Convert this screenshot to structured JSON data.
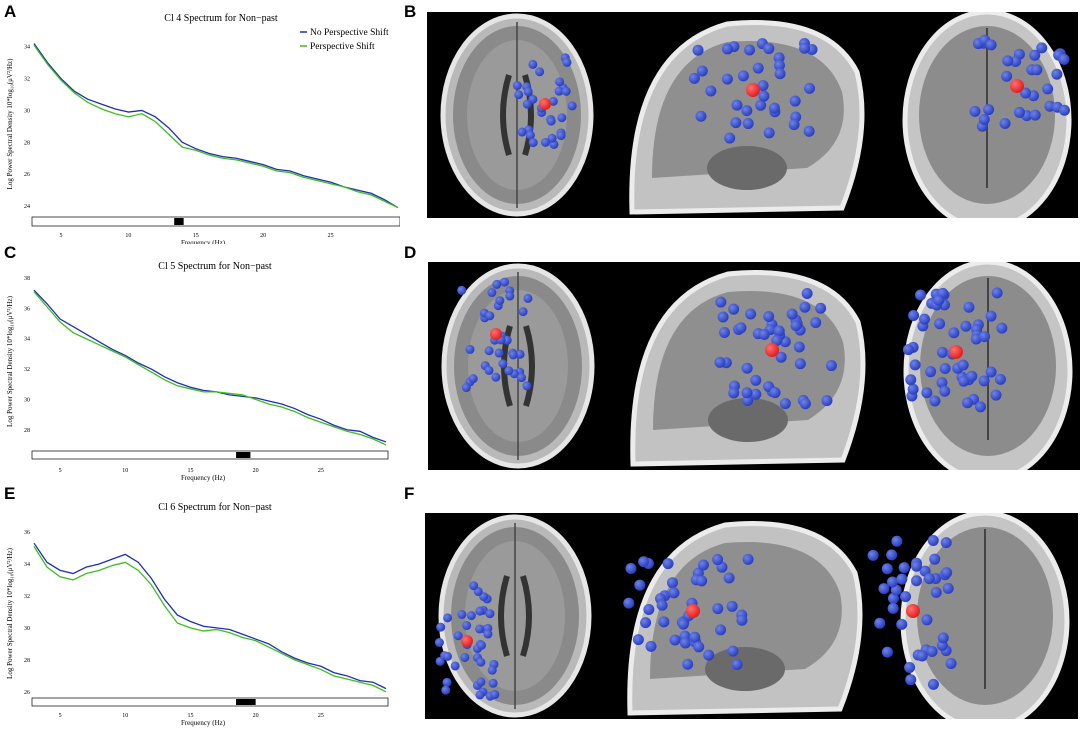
{
  "panels": {
    "a": "A",
    "b": "B",
    "c": "C",
    "d": "D",
    "e": "E",
    "f": "F"
  },
  "colors": {
    "no_shift": "#1f2fb4",
    "shift": "#3cbf1e",
    "dipole_blue": "#2a3fbf",
    "dipole_red": "#e0201e"
  },
  "chart_data": [
    {
      "type": "line",
      "title": "Cl 4 Spectrum for Non−past",
      "xlabel": "Frequency (Hz)",
      "ylabel": "Log Power Spectral Density 10*log₁₀(μV²/Hz)",
      "xlim": [
        3,
        30
      ],
      "ylim": [
        23.5,
        34.8
      ],
      "xticks": [
        "5",
        "10",
        "15",
        "20",
        "25"
      ],
      "yticks": [
        "24",
        "26",
        "28",
        "30",
        "32",
        "34"
      ],
      "legend": [
        "No Perspective Shift",
        "Perspective Shift"
      ],
      "legend_position": "top-right",
      "significance": [
        [
          13.4,
          14.1
        ]
      ],
      "series": [
        {
          "name": "No Perspective Shift",
          "x": [
            3,
            4,
            5,
            6,
            7,
            8,
            9,
            10,
            11,
            12,
            13,
            14,
            15,
            16,
            17,
            18,
            19,
            20,
            21,
            22,
            23,
            24,
            25,
            26,
            27,
            28,
            29,
            30
          ],
          "values": [
            34.2,
            33.0,
            32.0,
            31.2,
            30.7,
            30.4,
            30.1,
            29.9,
            30.0,
            29.6,
            28.9,
            28.0,
            27.6,
            27.3,
            27.1,
            27.0,
            26.8,
            26.6,
            26.3,
            26.2,
            25.9,
            25.7,
            25.5,
            25.2,
            25.0,
            24.8,
            24.4,
            23.9
          ]
        },
        {
          "name": "Perspective Shift",
          "x": [
            3,
            4,
            5,
            6,
            7,
            8,
            9,
            10,
            11,
            12,
            13,
            14,
            15,
            16,
            17,
            18,
            19,
            20,
            21,
            22,
            23,
            24,
            25,
            26,
            27,
            28,
            29,
            30
          ],
          "values": [
            34.1,
            32.9,
            31.9,
            31.1,
            30.5,
            30.1,
            29.8,
            29.6,
            29.8,
            29.3,
            28.5,
            27.7,
            27.5,
            27.2,
            27.0,
            26.9,
            26.7,
            26.5,
            26.2,
            26.1,
            25.8,
            25.6,
            25.4,
            25.2,
            24.9,
            24.7,
            24.3,
            23.9
          ]
        }
      ]
    },
    {
      "type": "line",
      "title": "Cl 5 Spectrum for Non−past",
      "xlabel": "Frequency (Hz)",
      "ylabel": "Log Power Spectral Density 10*log₁₀(μV²/Hz)",
      "xlim": [
        3,
        30
      ],
      "ylim": [
        26.8,
        38.2
      ],
      "xticks": [
        "5",
        "10",
        "15",
        "20",
        "25"
      ],
      "yticks": [
        "28",
        "30",
        "32",
        "34",
        "36",
        "38"
      ],
      "legend": [],
      "significance": [
        [
          18.5,
          19.6
        ]
      ],
      "series": [
        {
          "name": "No Perspective Shift",
          "x": [
            3,
            4,
            5,
            6,
            7,
            8,
            9,
            10,
            11,
            12,
            13,
            14,
            15,
            16,
            17,
            18,
            19,
            20,
            21,
            22,
            23,
            24,
            25,
            26,
            27,
            28,
            29,
            30
          ],
          "values": [
            37.2,
            36.3,
            35.3,
            34.8,
            34.3,
            33.8,
            33.3,
            32.9,
            32.4,
            32.0,
            31.5,
            31.1,
            30.8,
            30.6,
            30.5,
            30.3,
            30.2,
            30.1,
            29.9,
            29.7,
            29.4,
            29.0,
            28.7,
            28.3,
            28.0,
            27.9,
            27.5,
            27.2
          ]
        },
        {
          "name": "Perspective Shift",
          "x": [
            3,
            4,
            5,
            6,
            7,
            8,
            9,
            10,
            11,
            12,
            13,
            14,
            15,
            16,
            17,
            18,
            19,
            20,
            21,
            22,
            23,
            24,
            25,
            26,
            27,
            28,
            29,
            30
          ],
          "values": [
            37.1,
            36.1,
            35.1,
            34.4,
            34.0,
            33.6,
            33.2,
            32.8,
            32.3,
            31.8,
            31.3,
            30.9,
            30.7,
            30.5,
            30.5,
            30.4,
            30.3,
            30.0,
            29.7,
            29.5,
            29.2,
            28.8,
            28.5,
            28.2,
            27.9,
            27.7,
            27.4,
            27.0
          ]
        }
      ]
    },
    {
      "type": "line",
      "title": "Cl 6 Spectrum for Non−past",
      "xlabel": "Frequency (Hz)",
      "ylabel": "Log Power Spectral Density 10*log₁₀(μV²/Hz)",
      "xlim": [
        3,
        30
      ],
      "ylim": [
        25.8,
        36.0
      ],
      "xticks": [
        "5",
        "10",
        "15",
        "20",
        "25"
      ],
      "yticks": [
        "26",
        "28",
        "30",
        "32",
        "34",
        "36"
      ],
      "legend": [],
      "significance": [
        [
          18.5,
          20.0
        ]
      ],
      "series": [
        {
          "name": "No Perspective Shift",
          "x": [
            3,
            4,
            5,
            6,
            7,
            8,
            9,
            10,
            11,
            12,
            13,
            14,
            15,
            16,
            17,
            18,
            19,
            20,
            21,
            22,
            23,
            24,
            25,
            26,
            27,
            28,
            29,
            30
          ],
          "values": [
            35.3,
            34.1,
            33.6,
            33.4,
            33.8,
            34.0,
            34.3,
            34.6,
            34.1,
            33.1,
            31.8,
            30.8,
            30.4,
            30.1,
            30.0,
            29.9,
            29.6,
            29.3,
            29.0,
            28.5,
            28.1,
            27.8,
            27.6,
            27.2,
            27.0,
            26.7,
            26.6,
            26.2
          ]
        },
        {
          "name": "Perspective Shift",
          "x": [
            3,
            4,
            5,
            6,
            7,
            8,
            9,
            10,
            11,
            12,
            13,
            14,
            15,
            16,
            17,
            18,
            19,
            20,
            21,
            22,
            23,
            24,
            25,
            26,
            27,
            28,
            29,
            30
          ],
          "values": [
            35.1,
            33.8,
            33.2,
            33.0,
            33.4,
            33.6,
            33.9,
            34.1,
            33.6,
            32.7,
            31.4,
            30.3,
            30.0,
            29.8,
            29.9,
            29.7,
            29.4,
            29.2,
            28.8,
            28.4,
            28.0,
            27.7,
            27.4,
            27.0,
            26.8,
            26.6,
            26.4,
            26.0
          ]
        }
      ]
    }
  ]
}
